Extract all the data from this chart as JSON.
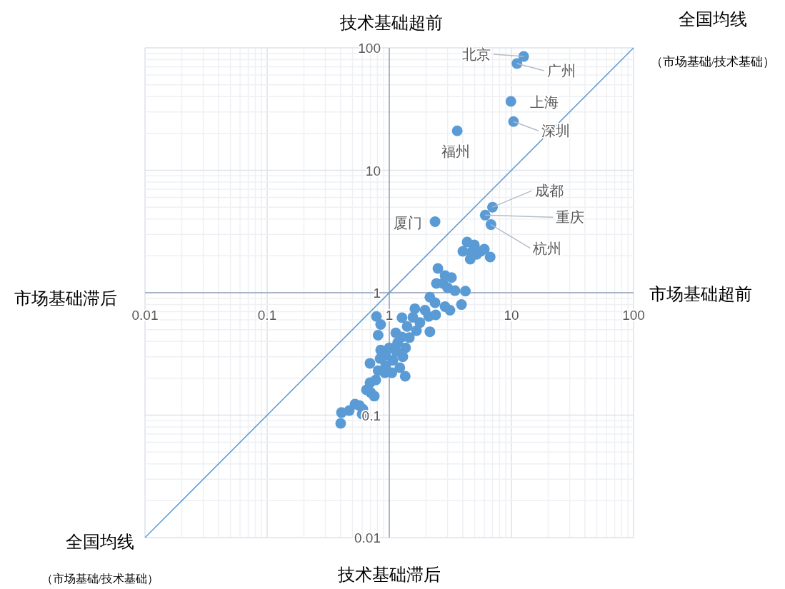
{
  "chart_data": {
    "type": "scatter",
    "log": "xy",
    "xlim": [
      0.01,
      100
    ],
    "ylim": [
      0.01,
      100
    ],
    "xticks": [
      0.01,
      0.1,
      1,
      10,
      100
    ],
    "yticks": [
      0.01,
      0.1,
      1,
      10,
      100
    ],
    "grid": true,
    "series": [
      {
        "type": "scatter",
        "marker": "circle",
        "color": "#5b9bd5",
        "x": [
          12.6,
          11.1,
          9.9,
          10.4,
          3.6,
          7.0,
          6.1,
          6.8,
          2.37,
          4.34,
          4.97,
          4.0,
          4.7,
          5.6,
          6.0,
          5.2,
          4.6,
          6.7,
          2.5,
          2.86,
          3.23,
          2.43,
          2.75,
          3.0,
          3.45,
          4.2,
          2.15,
          2.37,
          3.9,
          2.86,
          3.14,
          1.62,
          1.96,
          2.1,
          2.4,
          0.785,
          0.85,
          0.81,
          1.27,
          1.56,
          1.78,
          2.15,
          1.67,
          1.4,
          1.13,
          1.27,
          1.46,
          1.17,
          1.36,
          1.0,
          0.85,
          1.14,
          1.29,
          0.935,
          0.84,
          1.07,
          0.695,
          0.935,
          1.22,
          0.81,
          0.92,
          1.05,
          1.35,
          0.775,
          0.695,
          0.65,
          0.705,
          0.754,
          0.524,
          0.568,
          0.608,
          0.47,
          0.406,
          0.4,
          0.6
        ],
        "values": [
          85,
          74.5,
          36.5,
          25,
          21,
          5.0,
          4.3,
          3.6,
          3.8,
          2.59,
          2.46,
          2.18,
          2.15,
          2.18,
          2.27,
          2.06,
          1.88,
          1.96,
          1.58,
          1.38,
          1.33,
          1.19,
          1.19,
          1.1,
          1.04,
          1.03,
          0.92,
          0.83,
          0.8,
          0.77,
          0.72,
          0.74,
          0.72,
          0.64,
          0.66,
          0.64,
          0.55,
          0.45,
          0.625,
          0.63,
          0.57,
          0.48,
          0.49,
          0.53,
          0.47,
          0.435,
          0.43,
          0.39,
          0.355,
          0.355,
          0.34,
          0.33,
          0.3,
          0.31,
          0.29,
          0.28,
          0.265,
          0.254,
          0.244,
          0.231,
          0.222,
          0.222,
          0.208,
          0.194,
          0.184,
          0.161,
          0.153,
          0.143,
          0.123,
          0.12,
          0.112,
          0.109,
          0.105,
          0.0857,
          0.102
        ]
      },
      {
        "type": "line",
        "color": "#5b9bd5",
        "x": [
          0.01,
          100
        ],
        "values": [
          0.01,
          100
        ]
      }
    ],
    "annotations": [
      {
        "text": "北京",
        "x": 12.6,
        "y": 85
      },
      {
        "text": "广州",
        "x": 11.1,
        "y": 74.5
      },
      {
        "text": "上海",
        "x": 9.9,
        "y": 36.5
      },
      {
        "text": "深圳",
        "x": 10.4,
        "y": 25
      },
      {
        "text": "福州",
        "x": 3.6,
        "y": 21
      },
      {
        "text": "成都",
        "x": 7.0,
        "y": 5.0
      },
      {
        "text": "重庆",
        "x": 6.1,
        "y": 4.3
      },
      {
        "text": "杭州",
        "x": 6.8,
        "y": 3.6
      },
      {
        "text": "厦门",
        "x": 2.37,
        "y": 3.8
      },
      {
        "text": "全国均线",
        "x": 100,
        "y": 100
      },
      {
        "text": "全国均线",
        "x": 0.01,
        "y": 0.01
      },
      "技术基础超前",
      "市场基础滞后",
      "市场基础超前",
      "技术基础滞后",
      "（市场基础/技术基础）",
      "（市场基础/技术基础）"
    ]
  }
}
